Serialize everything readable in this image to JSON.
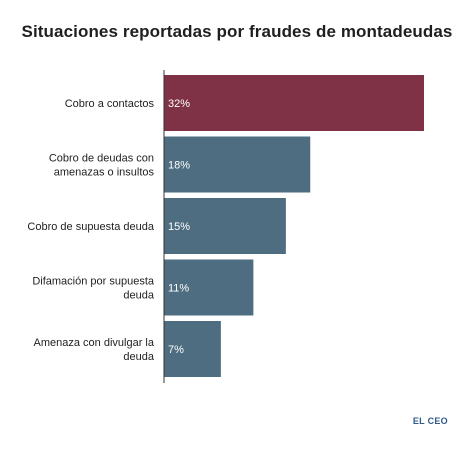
{
  "chart_data": {
    "type": "bar",
    "orientation": "horizontal",
    "title": "Situaciones reportadas por fraudes de montadeudas",
    "categories": [
      [
        "Cobro a contactos"
      ],
      [
        "Cobro de deudas con",
        "amenazas o insultos"
      ],
      [
        "Cobro de supuesta deuda"
      ],
      [
        "Difamación por supuesta",
        "deuda"
      ],
      [
        "Amenaza con divulgar la",
        "deuda"
      ]
    ],
    "values": [
      32,
      18,
      15,
      11,
      7
    ],
    "value_labels": [
      "32%",
      "18%",
      "15%",
      "11%",
      "7%"
    ],
    "unit": "%",
    "xlim": [
      0,
      32
    ],
    "grid": false,
    "legend": "none",
    "colors": {
      "highlight": "#7f3245",
      "default": "#4e6d80",
      "axis": "#333333"
    }
  },
  "source": "EL CEO"
}
